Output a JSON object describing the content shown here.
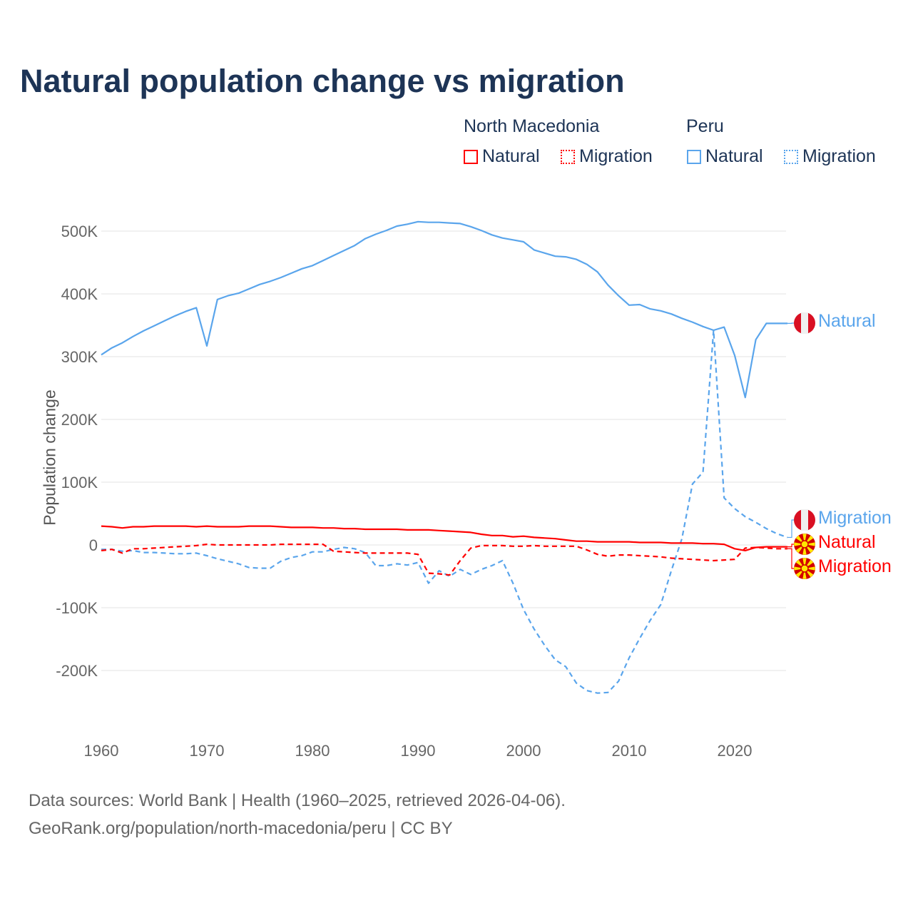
{
  "title": "Natural population change vs migration",
  "legend": {
    "groups": [
      {
        "name": "North Macedonia",
        "items": [
          "Natural",
          "Migration"
        ],
        "color": "#ff0000"
      },
      {
        "name": "Peru",
        "items": [
          "Natural",
          "Migration"
        ],
        "color": "#5aa5ec"
      }
    ]
  },
  "end_labels": {
    "peru_natural": "Natural",
    "peru_migration": "Migration",
    "nm_natural": "Natural",
    "nm_migration": "Migration"
  },
  "source": {
    "line1": "Data sources: World Bank | Health (1960–2025, retrieved 2026-04-06).",
    "line2": "GeoRank.org/population/north-macedonia/peru | CC BY"
  },
  "chart_data": {
    "type": "line",
    "title": "Natural population change vs migration",
    "xlabel": "",
    "ylabel": "Population change",
    "xlim": [
      1960,
      2025
    ],
    "ylim": [
      -300000,
      550000
    ],
    "xticks": [
      1960,
      1970,
      1980,
      1990,
      2000,
      2010,
      2020
    ],
    "yticks": [
      {
        "v": -200000,
        "l": "-200K"
      },
      {
        "v": -100000,
        "l": "-100K"
      },
      {
        "v": 0,
        "l": "0"
      },
      {
        "v": 100000,
        "l": "100K"
      },
      {
        "v": 200000,
        "l": "200K"
      },
      {
        "v": 300000,
        "l": "300K"
      },
      {
        "v": 400000,
        "l": "400K"
      },
      {
        "v": 500000,
        "l": "500K"
      }
    ],
    "x_start": 1960,
    "unit": "thousands",
    "series": [
      {
        "name": "Peru Natural",
        "color": "#5aa5ec",
        "dash": false,
        "values": [
          303,
          314,
          322,
          332,
          341,
          349,
          357,
          365,
          372,
          378,
          317,
          391,
          397,
          401,
          408,
          415,
          420,
          426,
          433,
          440,
          445,
          453,
          461,
          469,
          477,
          488,
          495,
          501,
          508,
          511,
          515,
          514,
          514,
          513,
          512,
          507,
          501,
          494,
          489,
          486,
          483,
          470,
          465,
          460,
          459,
          455,
          447,
          435,
          414,
          397,
          382,
          383,
          376,
          373,
          368,
          361,
          355,
          348,
          342,
          347,
          302,
          235,
          327,
          353,
          353,
          353
        ]
      },
      {
        "name": "Peru Migration",
        "color": "#5aa5ec",
        "dash": true,
        "values": [
          -7,
          -7,
          -10,
          -9,
          -12,
          -12,
          -13,
          -14,
          -14,
          -13,
          -17,
          -22,
          -26,
          -30,
          -36,
          -37,
          -37,
          -26,
          -20,
          -17,
          -11,
          -11,
          -7,
          -4,
          -6,
          -12,
          -33,
          -33,
          -30,
          -32,
          -28,
          -61,
          -41,
          -50,
          -39,
          -47,
          -39,
          -33,
          -25,
          -61,
          -103,
          -134,
          -160,
          -183,
          -194,
          -220,
          -232,
          -236,
          -235,
          -217,
          -180,
          -149,
          -120,
          -95,
          -41,
          10,
          97,
          116,
          342,
          75,
          58,
          45,
          36,
          26,
          18,
          12
        ]
      },
      {
        "name": "North Macedonia Natural",
        "color": "#ff0000",
        "dash": false,
        "values": [
          30,
          29,
          27,
          29,
          29,
          30,
          30,
          30,
          30,
          29,
          30,
          29,
          29,
          29,
          30,
          30,
          30,
          29,
          28,
          28,
          28,
          27,
          27,
          26,
          26,
          25,
          25,
          25,
          25,
          24,
          24,
          24,
          23,
          22,
          21,
          20,
          17,
          15,
          15,
          13,
          14,
          12,
          11,
          10,
          8,
          6,
          6,
          5,
          5,
          5,
          5,
          4,
          4,
          4,
          3,
          3,
          3,
          2,
          2,
          1,
          -6,
          -9,
          -4,
          -3,
          -3,
          -3
        ]
      },
      {
        "name": "North Macedonia Migration",
        "color": "#ff0000",
        "dash": true,
        "values": [
          -9,
          -7,
          -13,
          -6,
          -6,
          -5,
          -4,
          -3,
          -2,
          -1,
          1,
          0,
          0,
          0,
          0,
          0,
          0,
          1,
          1,
          1,
          1,
          1,
          -10,
          -11,
          -12,
          -13,
          -13,
          -13,
          -13,
          -13,
          -15,
          -45,
          -46,
          -48,
          -25,
          -5,
          -1,
          -1,
          -1,
          -2,
          -2,
          -1,
          -2,
          -2,
          -2,
          -2,
          -8,
          -15,
          -18,
          -16,
          -16,
          -17,
          -18,
          -19,
          -21,
          -22,
          -23,
          -24,
          -25,
          -24,
          -23,
          -5,
          -4,
          -5,
          -6,
          -6
        ]
      }
    ]
  }
}
